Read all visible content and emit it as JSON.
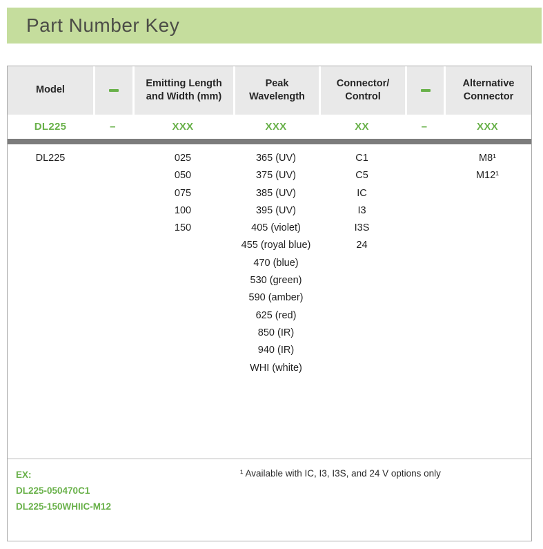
{
  "title_bar": {
    "title": "Part Number Key"
  },
  "table": {
    "header": {
      "model": "Model",
      "dash1": "–",
      "emitting": "Emitting Length\nand Width (mm)",
      "peak": "Peak\nWavelength",
      "connector": "Connector/\nControl",
      "dash2": "–",
      "alternative": "Alternative\nConnector"
    },
    "code_row": {
      "model": "DL225",
      "dash1": "–",
      "emitting": "XXX",
      "peak": "XXX",
      "connector": "XX",
      "dash2": "–",
      "alternative": "XXX"
    },
    "columns": {
      "model": [
        "DL225"
      ],
      "emitting_length_width_mm": [
        "025",
        "050",
        "075",
        "100",
        "150"
      ],
      "peak_wavelength": [
        "365 (UV)",
        "375 (UV)",
        "385 (UV)",
        "395 (UV)",
        "405 (violet)",
        "455 (royal blue)",
        "470 (blue)",
        "530 (green)",
        "590 (amber)",
        "625 (red)",
        "850 (IR)",
        "940 (IR)",
        "WHI (white)"
      ],
      "connector_control": [
        "C1",
        "C5",
        "IC",
        "I3",
        "I3S",
        "24"
      ],
      "alternative_connector": [
        "M8¹",
        "M12¹"
      ]
    },
    "footer": {
      "example_label": "EX:",
      "examples": [
        "DL225-050470C1",
        "DL225-150WHIIC-M12"
      ],
      "footnote": "¹ Available with IC, I3, I3S, and 24 V options only"
    }
  },
  "colors": {
    "banner-green": "#c5dd9d",
    "accent-green": "#69b14a",
    "header-gray": "#e9e9e9",
    "bar-gray": "#7c7c7c",
    "border-gray": "#ababab",
    "title-color": "#4c4d47",
    "text-color": "#1f1f1f"
  }
}
